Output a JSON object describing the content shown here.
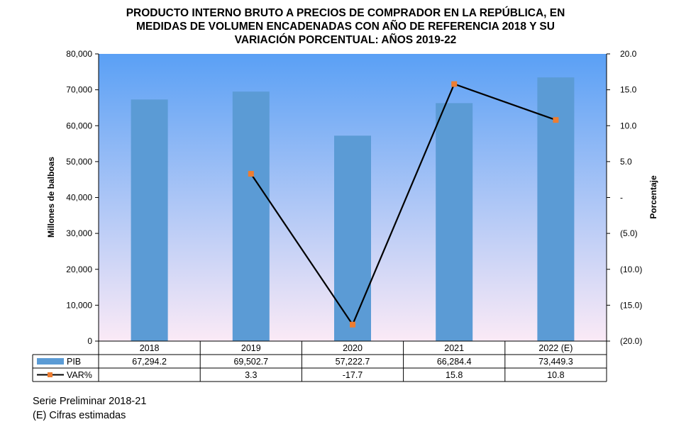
{
  "chart_data": {
    "type": "bar+line",
    "title_lines": [
      "PRODUCTO INTERNO BRUTO A PRECIOS DE COMPRADOR EN LA  REPÚBLICA, EN",
      "MEDIDAS DE VOLUMEN ENCADENADAS CON AÑO DE REFERENCIA 2018 Y SU",
      "VARIACIÓN PORCENTUAL: AÑOS 2019-22"
    ],
    "categories": [
      "2018",
      "2019",
      "2020",
      "2021",
      "2022 (E)"
    ],
    "series": [
      {
        "name": "PIB",
        "kind": "bar",
        "axis": "left",
        "color": "#5b9bd5",
        "values": [
          67294.2,
          69502.7,
          57222.7,
          66284.4,
          73449.3
        ],
        "labels": [
          "67,294.2",
          "69,502.7",
          "57,222.7",
          "66,284.4",
          "73,449.3"
        ]
      },
      {
        "name": "VAR%",
        "kind": "line",
        "axis": "right",
        "color": "#000000",
        "marker_color": "#ed7d31",
        "values": [
          null,
          3.3,
          -17.7,
          15.8,
          10.8
        ],
        "labels": [
          "",
          "3.3",
          "-17.7",
          "15.8",
          "10.8"
        ]
      }
    ],
    "ylabel": "Millones de balboas",
    "ylim": [
      0,
      80000
    ],
    "yticks": [
      "0",
      "10,000",
      "20,000",
      "30,000",
      "40,000",
      "50,000",
      "60,000",
      "70,000",
      "80,000"
    ],
    "y2label": "Porcentaje",
    "y2lim": [
      -20,
      20
    ],
    "y2ticks": [
      "(20.0)",
      "(15.0)",
      "(10.0)",
      "(5.0)",
      "-",
      "5.0",
      "10.0",
      "15.0",
      "20.0"
    ],
    "legend": "data table",
    "grid": false,
    "background_gradient": [
      "#5aa0f5",
      "#fbeaf6"
    ]
  },
  "notes": [
    "Serie Preliminar 2018-21",
    "(E) Cifras estimadas"
  ]
}
